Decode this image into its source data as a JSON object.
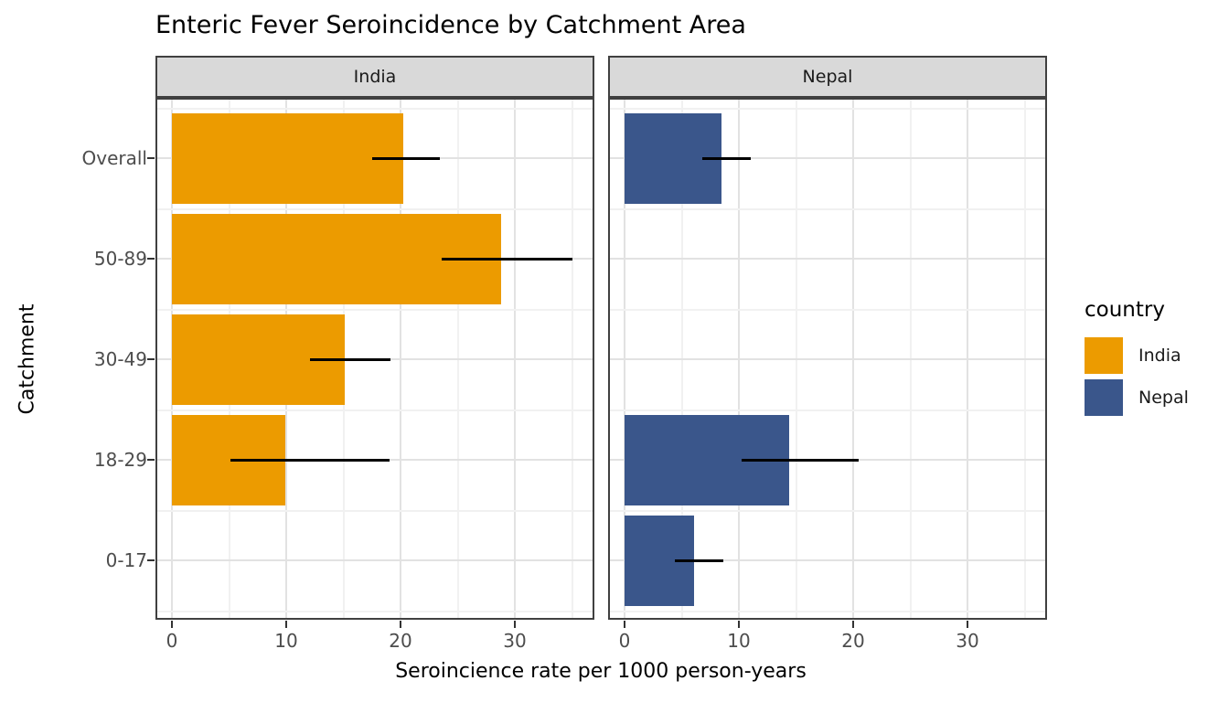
{
  "chart_data": {
    "type": "bar",
    "orientation": "horizontal",
    "title": "Enteric Fever Seroincidence by Catchment Area",
    "xlabel": "Seroincience rate per 1000 person-years",
    "ylabel": "Catchment",
    "categories": [
      "Overall",
      "50-89",
      "30-49",
      "18-29",
      "0-17"
    ],
    "x_ticks": [
      0,
      10,
      20,
      30
    ],
    "x_tick_labels": [
      "0",
      "10",
      "20",
      "30"
    ],
    "x_minor_ticks": [
      5,
      15,
      25,
      35
    ],
    "xlim": [
      -1.44,
      36.96
    ],
    "grid": true,
    "legend_position": "right",
    "facets": [
      {
        "label": "India",
        "color": "#EC9B00",
        "values": [
          {
            "catchment": "Overall",
            "rate": 20.2,
            "ci_low": 17.5,
            "ci_high": 23.4
          },
          {
            "catchment": "50-89",
            "rate": 28.8,
            "ci_low": 23.6,
            "ci_high": 35.0
          },
          {
            "catchment": "30-49",
            "rate": 15.1,
            "ci_low": 12.1,
            "ci_high": 19.1
          },
          {
            "catchment": "18-29",
            "rate": 9.9,
            "ci_low": 5.1,
            "ci_high": 19.0
          },
          {
            "catchment": "0-17",
            "rate": null,
            "ci_low": null,
            "ci_high": null
          }
        ]
      },
      {
        "label": "Nepal",
        "color": "#3A568B",
        "values": [
          {
            "catchment": "Overall",
            "rate": 8.5,
            "ci_low": 6.8,
            "ci_high": 11.0
          },
          {
            "catchment": "50-89",
            "rate": null,
            "ci_low": null,
            "ci_high": null
          },
          {
            "catchment": "30-49",
            "rate": null,
            "ci_low": null,
            "ci_high": null
          },
          {
            "catchment": "18-29",
            "rate": 14.4,
            "ci_low": 10.2,
            "ci_high": 20.5
          },
          {
            "catchment": "0-17",
            "rate": 6.1,
            "ci_low": 4.4,
            "ci_high": 8.6
          }
        ]
      }
    ],
    "legend": {
      "title": "country",
      "entries": [
        {
          "label": "India",
          "color": "#EC9B00"
        },
        {
          "label": "Nepal",
          "color": "#3A568B"
        }
      ]
    }
  }
}
